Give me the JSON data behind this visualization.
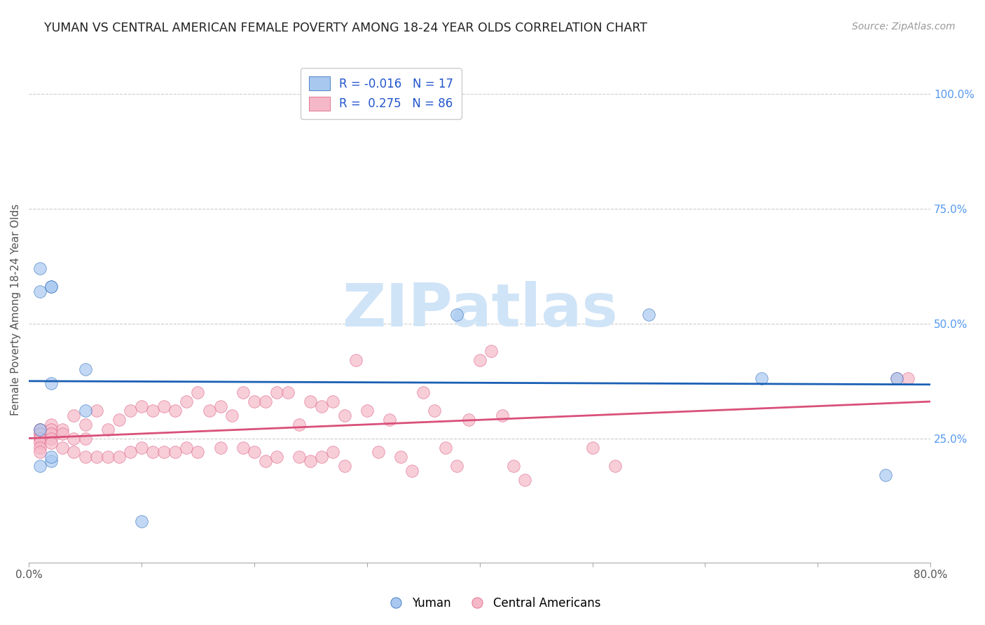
{
  "title": "YUMAN VS CENTRAL AMERICAN FEMALE POVERTY AMONG 18-24 YEAR OLDS CORRELATION CHART",
  "source": "Source: ZipAtlas.com",
  "ylabel": "Female Poverty Among 18-24 Year Olds",
  "xlim": [
    0.0,
    0.8
  ],
  "ylim": [
    -0.02,
    1.08
  ],
  "xtick_pos": [
    0.0,
    0.1,
    0.2,
    0.3,
    0.4,
    0.5,
    0.6,
    0.7,
    0.8
  ],
  "xtick_labels": [
    "0.0%",
    "",
    "",
    "",
    "",
    "",
    "",
    "",
    "80.0%"
  ],
  "ytick_right_pos": [
    0.25,
    0.5,
    0.75,
    1.0
  ],
  "ytick_right_labels": [
    "25.0%",
    "50.0%",
    "75.0%",
    "100.0%"
  ],
  "blue_R": -0.016,
  "blue_N": 17,
  "pink_R": 0.275,
  "pink_N": 86,
  "blue_color": "#a8c8f0",
  "pink_color": "#f5b8c8",
  "blue_line_color": "#1a5fb4",
  "pink_line_color": "#d9507a",
  "watermark_text": "ZIPatlas",
  "watermark_color": "#d0e4f7",
  "background_color": "#ffffff",
  "grid_color": "#cccccc",
  "blue_points_x": [
    0.01,
    0.01,
    0.02,
    0.02,
    0.02,
    0.02,
    0.02,
    0.05,
    0.05,
    0.38,
    0.55,
    0.65,
    0.76,
    0.77,
    0.1,
    0.01,
    0.01
  ],
  "blue_points_y": [
    0.62,
    0.57,
    0.58,
    0.58,
    0.37,
    0.2,
    0.21,
    0.4,
    0.31,
    0.52,
    0.52,
    0.38,
    0.17,
    0.38,
    0.07,
    0.27,
    0.19
  ],
  "pink_points_x": [
    0.01,
    0.01,
    0.01,
    0.01,
    0.01,
    0.01,
    0.01,
    0.01,
    0.01,
    0.02,
    0.02,
    0.02,
    0.02,
    0.02,
    0.03,
    0.03,
    0.03,
    0.04,
    0.04,
    0.04,
    0.05,
    0.05,
    0.05,
    0.06,
    0.06,
    0.07,
    0.07,
    0.08,
    0.08,
    0.09,
    0.09,
    0.1,
    0.1,
    0.11,
    0.11,
    0.12,
    0.12,
    0.13,
    0.13,
    0.14,
    0.14,
    0.15,
    0.15,
    0.16,
    0.17,
    0.17,
    0.18,
    0.19,
    0.19,
    0.2,
    0.2,
    0.21,
    0.21,
    0.22,
    0.22,
    0.23,
    0.24,
    0.24,
    0.25,
    0.25,
    0.26,
    0.26,
    0.27,
    0.27,
    0.28,
    0.28,
    0.29,
    0.3,
    0.31,
    0.32,
    0.33,
    0.34,
    0.35,
    0.36,
    0.37,
    0.38,
    0.39,
    0.4,
    0.41,
    0.42,
    0.43,
    0.44,
    0.5,
    0.52,
    0.77,
    0.78
  ],
  "pink_points_y": [
    0.27,
    0.27,
    0.26,
    0.26,
    0.25,
    0.25,
    0.24,
    0.23,
    0.22,
    0.28,
    0.27,
    0.26,
    0.25,
    0.24,
    0.27,
    0.26,
    0.23,
    0.3,
    0.25,
    0.22,
    0.28,
    0.25,
    0.21,
    0.31,
    0.21,
    0.27,
    0.21,
    0.29,
    0.21,
    0.31,
    0.22,
    0.32,
    0.23,
    0.31,
    0.22,
    0.32,
    0.22,
    0.31,
    0.22,
    0.33,
    0.23,
    0.35,
    0.22,
    0.31,
    0.32,
    0.23,
    0.3,
    0.35,
    0.23,
    0.33,
    0.22,
    0.33,
    0.2,
    0.35,
    0.21,
    0.35,
    0.28,
    0.21,
    0.33,
    0.2,
    0.32,
    0.21,
    0.33,
    0.22,
    0.3,
    0.19,
    0.42,
    0.31,
    0.22,
    0.29,
    0.21,
    0.18,
    0.35,
    0.31,
    0.23,
    0.19,
    0.29,
    0.42,
    0.44,
    0.3,
    0.19,
    0.16,
    0.23,
    0.19,
    0.38,
    0.38
  ]
}
